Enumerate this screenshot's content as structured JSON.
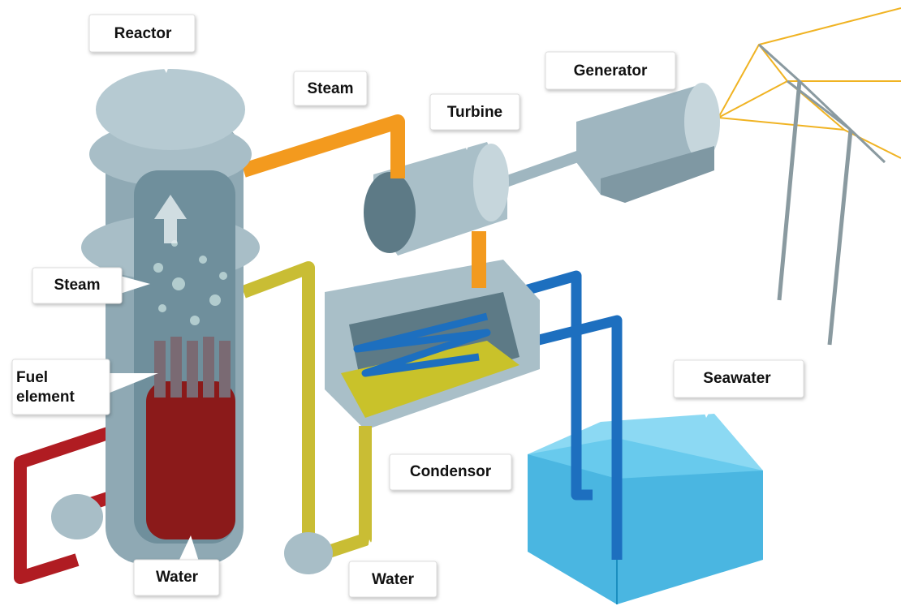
{
  "labels": {
    "reactor": "Reactor",
    "steam_top": "Steam",
    "generator": "Generator",
    "turbine": "Turbine",
    "steam_left": "Steam",
    "fuel_element": [
      "Fuel",
      "element"
    ],
    "seawater": "Seawater",
    "condensor": "Condensor",
    "water_reactor": "Water",
    "water_pump": "Water"
  }
}
